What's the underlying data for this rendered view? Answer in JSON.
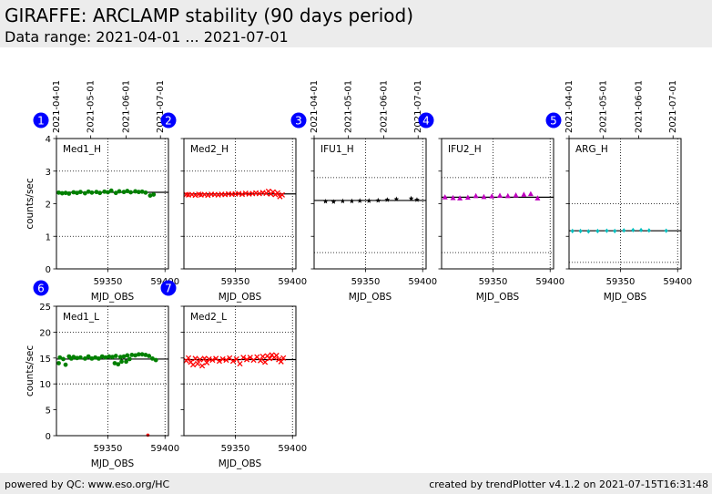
{
  "header": {
    "title": "GIRAFFE: ARCLAMP stability (90 days period)",
    "subtitle": "Data range: 2021-04-01 ... 2021-07-01"
  },
  "footer": {
    "left": "powered by QC: www.eso.org/HC",
    "right": "created by trendPlotter v4.1.2 on 2021-07-15T16:31:48"
  },
  "colors": {
    "green": "#008000",
    "red": "#ff0000",
    "black": "#000000",
    "magenta": "#bf00bf",
    "cyan": "#00bfbf",
    "badge": "#0000ff"
  },
  "chart_data": [
    {
      "type": "scatter",
      "number": "1",
      "label": "Med1_H",
      "xlabel": "MJD_OBS",
      "ylabel": "counts/sec",
      "xlim": [
        59305,
        59403
      ],
      "ylim": [
        0,
        4
      ],
      "yticks": [
        0,
        1,
        2,
        3,
        4
      ],
      "show_yticklabels": true,
      "top_dates": [
        "2021-04-01",
        "2021-05-01",
        "2021-06-01",
        "2021-07-01"
      ],
      "date_mjd": [
        59305,
        59335,
        59366,
        59396
      ],
      "xticks": [
        59350,
        59400
      ],
      "hgrid": [
        1,
        3
      ],
      "mean": 2.35,
      "color": "#008000",
      "marker": "circle",
      "x": [
        59307,
        59310,
        59313,
        59316,
        59320,
        59323,
        59326,
        59330,
        59333,
        59336,
        59340,
        59343,
        59347,
        59350,
        59353,
        59357,
        59360,
        59364,
        59367,
        59370,
        59374,
        59377,
        59380,
        59383,
        59387,
        59390
      ],
      "y": [
        2.34,
        2.32,
        2.33,
        2.31,
        2.35,
        2.33,
        2.36,
        2.32,
        2.37,
        2.34,
        2.36,
        2.33,
        2.37,
        2.35,
        2.4,
        2.33,
        2.38,
        2.36,
        2.39,
        2.35,
        2.38,
        2.36,
        2.37,
        2.34,
        2.25,
        2.28
      ]
    },
    {
      "type": "scatter",
      "number": "2",
      "label": "Med2_H",
      "xlabel": "MJD_OBS",
      "ylabel": "",
      "xlim": [
        59305,
        59403
      ],
      "ylim": [
        0,
        4
      ],
      "yticks": [
        0,
        1,
        2,
        3,
        4
      ],
      "show_yticklabels": false,
      "top_dates": [],
      "date_mjd": [],
      "xticks": [
        59350,
        59400
      ],
      "hgrid": [
        1,
        3
      ],
      "mean": 2.3,
      "color": "#ff0000",
      "marker": "x",
      "x": [
        59307,
        59309,
        59312,
        59315,
        59318,
        59320,
        59323,
        59326,
        59329,
        59332,
        59335,
        59338,
        59341,
        59344,
        59347,
        59350,
        59353,
        59356,
        59359,
        59362,
        59365,
        59368,
        59371,
        59374,
        59377,
        59379,
        59381,
        59383,
        59385,
        59387,
        59389,
        59391
      ],
      "y": [
        2.28,
        2.27,
        2.28,
        2.26,
        2.29,
        2.27,
        2.28,
        2.26,
        2.29,
        2.28,
        2.27,
        2.29,
        2.28,
        2.3,
        2.29,
        2.3,
        2.31,
        2.29,
        2.32,
        2.3,
        2.31,
        2.33,
        2.31,
        2.34,
        2.32,
        2.38,
        2.3,
        2.36,
        2.28,
        2.33,
        2.22,
        2.27
      ]
    },
    {
      "type": "scatter",
      "number": "3",
      "label": "IFU1_H",
      "xlabel": "MJD_OBS",
      "ylabel": "",
      "xlim": [
        59305,
        59403
      ],
      "ylim": [
        0,
        4
      ],
      "yticks": [
        0,
        1,
        2,
        3,
        4
      ],
      "show_yticklabels": false,
      "top_dates": [
        "2021-04-01",
        "2021-05-01",
        "2021-06-01",
        "2021-07-01"
      ],
      "date_mjd": [
        59305,
        59335,
        59366,
        59396
      ],
      "xticks": [
        59350,
        59400
      ],
      "hgrid": [
        0.5,
        2.8
      ],
      "mean": 2.1,
      "color": "#000000",
      "marker": "star",
      "x": [
        59315,
        59322,
        59330,
        59338,
        59345,
        59353,
        59361,
        59369,
        59377,
        59390,
        59395
      ],
      "y": [
        2.07,
        2.06,
        2.08,
        2.08,
        2.09,
        2.09,
        2.1,
        2.12,
        2.14,
        2.16,
        2.12
      ]
    },
    {
      "type": "scatter",
      "number": "4",
      "label": "IFU2_H",
      "xlabel": "MJD_OBS",
      "ylabel": "",
      "xlim": [
        59305,
        59403
      ],
      "ylim": [
        0,
        4
      ],
      "yticks": [
        0,
        1,
        2,
        3,
        4
      ],
      "show_yticklabels": false,
      "top_dates": [],
      "date_mjd": [],
      "xticks": [
        59350,
        59400
      ],
      "hgrid": [
        0.5,
        2.8
      ],
      "mean": 2.2,
      "color": "#bf00bf",
      "marker": "triangle",
      "x": [
        59308,
        59315,
        59321,
        59328,
        59335,
        59342,
        59349,
        59356,
        59363,
        59370,
        59377,
        59383,
        59389
      ],
      "y": [
        2.2,
        2.18,
        2.17,
        2.19,
        2.24,
        2.21,
        2.23,
        2.25,
        2.24,
        2.26,
        2.28,
        2.3,
        2.17
      ]
    },
    {
      "type": "scatter",
      "number": "5",
      "label": "ARG_H",
      "xlabel": "MJD_OBS",
      "ylabel": "",
      "xlim": [
        59305,
        59403
      ],
      "ylim": [
        0,
        4
      ],
      "yticks": [
        0,
        1,
        2,
        3,
        4
      ],
      "show_yticklabels": false,
      "top_dates": [
        "2021-04-01",
        "2021-05-01",
        "2021-06-01",
        "2021-07-01"
      ],
      "date_mjd": [
        59305,
        59335,
        59366,
        59396
      ],
      "xticks": [
        59350,
        59400
      ],
      "hgrid": [
        0.2,
        2.0
      ],
      "mean": 1.17,
      "color": "#00bfbf",
      "marker": "diamond",
      "x": [
        59308,
        59315,
        59322,
        59330,
        59338,
        59345,
        59353,
        59361,
        59368,
        59375,
        59390
      ],
      "y": [
        1.16,
        1.16,
        1.15,
        1.16,
        1.17,
        1.16,
        1.18,
        1.19,
        1.19,
        1.18,
        1.17
      ]
    },
    {
      "type": "scatter",
      "number": "6",
      "label": "Med1_L",
      "xlabel": "MJD_OBS",
      "ylabel": "counts/sec",
      "xlim": [
        59305,
        59403
      ],
      "ylim": [
        0,
        25
      ],
      "yticks": [
        0,
        5,
        10,
        15,
        20,
        25
      ],
      "show_yticklabels": true,
      "top_dates": [],
      "date_mjd": [],
      "xticks": [
        59350,
        59400
      ],
      "hgrid": [
        10,
        20
      ],
      "mean": 14.8,
      "color": "#008000",
      "marker": "circle",
      "outlier": {
        "x": 59385,
        "y": 0.1,
        "color": "#ff0000"
      },
      "x": [
        59307,
        59308,
        59311,
        59313,
        59316,
        59318,
        59320,
        59323,
        59326,
        59330,
        59333,
        59336,
        59339,
        59342,
        59345,
        59348,
        59351,
        59354,
        59356,
        59357,
        59359,
        59361,
        59362,
        59364,
        59366,
        59367,
        59369,
        59371,
        59374,
        59377,
        59380,
        59383,
        59386,
        59389,
        59392
      ],
      "y": [
        14,
        15.1,
        14.8,
        13.7,
        15.3,
        14.9,
        15.2,
        15,
        15.1,
        14.9,
        15.3,
        14.9,
        15.1,
        14.9,
        15.3,
        15.1,
        15.3,
        15.2,
        14,
        15.4,
        13.8,
        15.2,
        14.3,
        15.3,
        14.3,
        15.5,
        14.8,
        15.6,
        15.5,
        15.7,
        15.7,
        15.6,
        15.4,
        14.9,
        14.6
      ]
    },
    {
      "type": "scatter",
      "number": "7",
      "label": "Med2_L",
      "xlabel": "MJD_OBS",
      "ylabel": "",
      "xlim": [
        59305,
        59403
      ],
      "ylim": [
        0,
        25
      ],
      "yticks": [
        0,
        5,
        10,
        15,
        20,
        25
      ],
      "show_yticklabels": false,
      "top_dates": [],
      "date_mjd": [],
      "xticks": [
        59350,
        59400
      ],
      "hgrid": [
        10,
        20
      ],
      "mean": 14.7,
      "color": "#ff0000",
      "marker": "x",
      "x": [
        59307,
        59309,
        59311,
        59313,
        59315,
        59317,
        59319,
        59321,
        59323,
        59325,
        59327,
        59330,
        59333,
        59336,
        59339,
        59342,
        59345,
        59348,
        59351,
        59354,
        59357,
        59360,
        59363,
        59366,
        59369,
        59372,
        59374,
        59376,
        59378,
        59380,
        59382,
        59384,
        59386,
        59388,
        59390,
        59392
      ],
      "y": [
        14.5,
        15,
        14.2,
        13.7,
        14.9,
        13.9,
        14.7,
        13.5,
        14.9,
        14.1,
        14.8,
        14.6,
        14.9,
        14.4,
        14.8,
        14.6,
        15,
        14.4,
        14.8,
        13.9,
        15.1,
        14.7,
        15.1,
        14.6,
        15.2,
        14.5,
        15.3,
        14.2,
        15.4,
        14.9,
        15.6,
        15.1,
        15.5,
        14.7,
        14.3,
        15
      ]
    }
  ]
}
